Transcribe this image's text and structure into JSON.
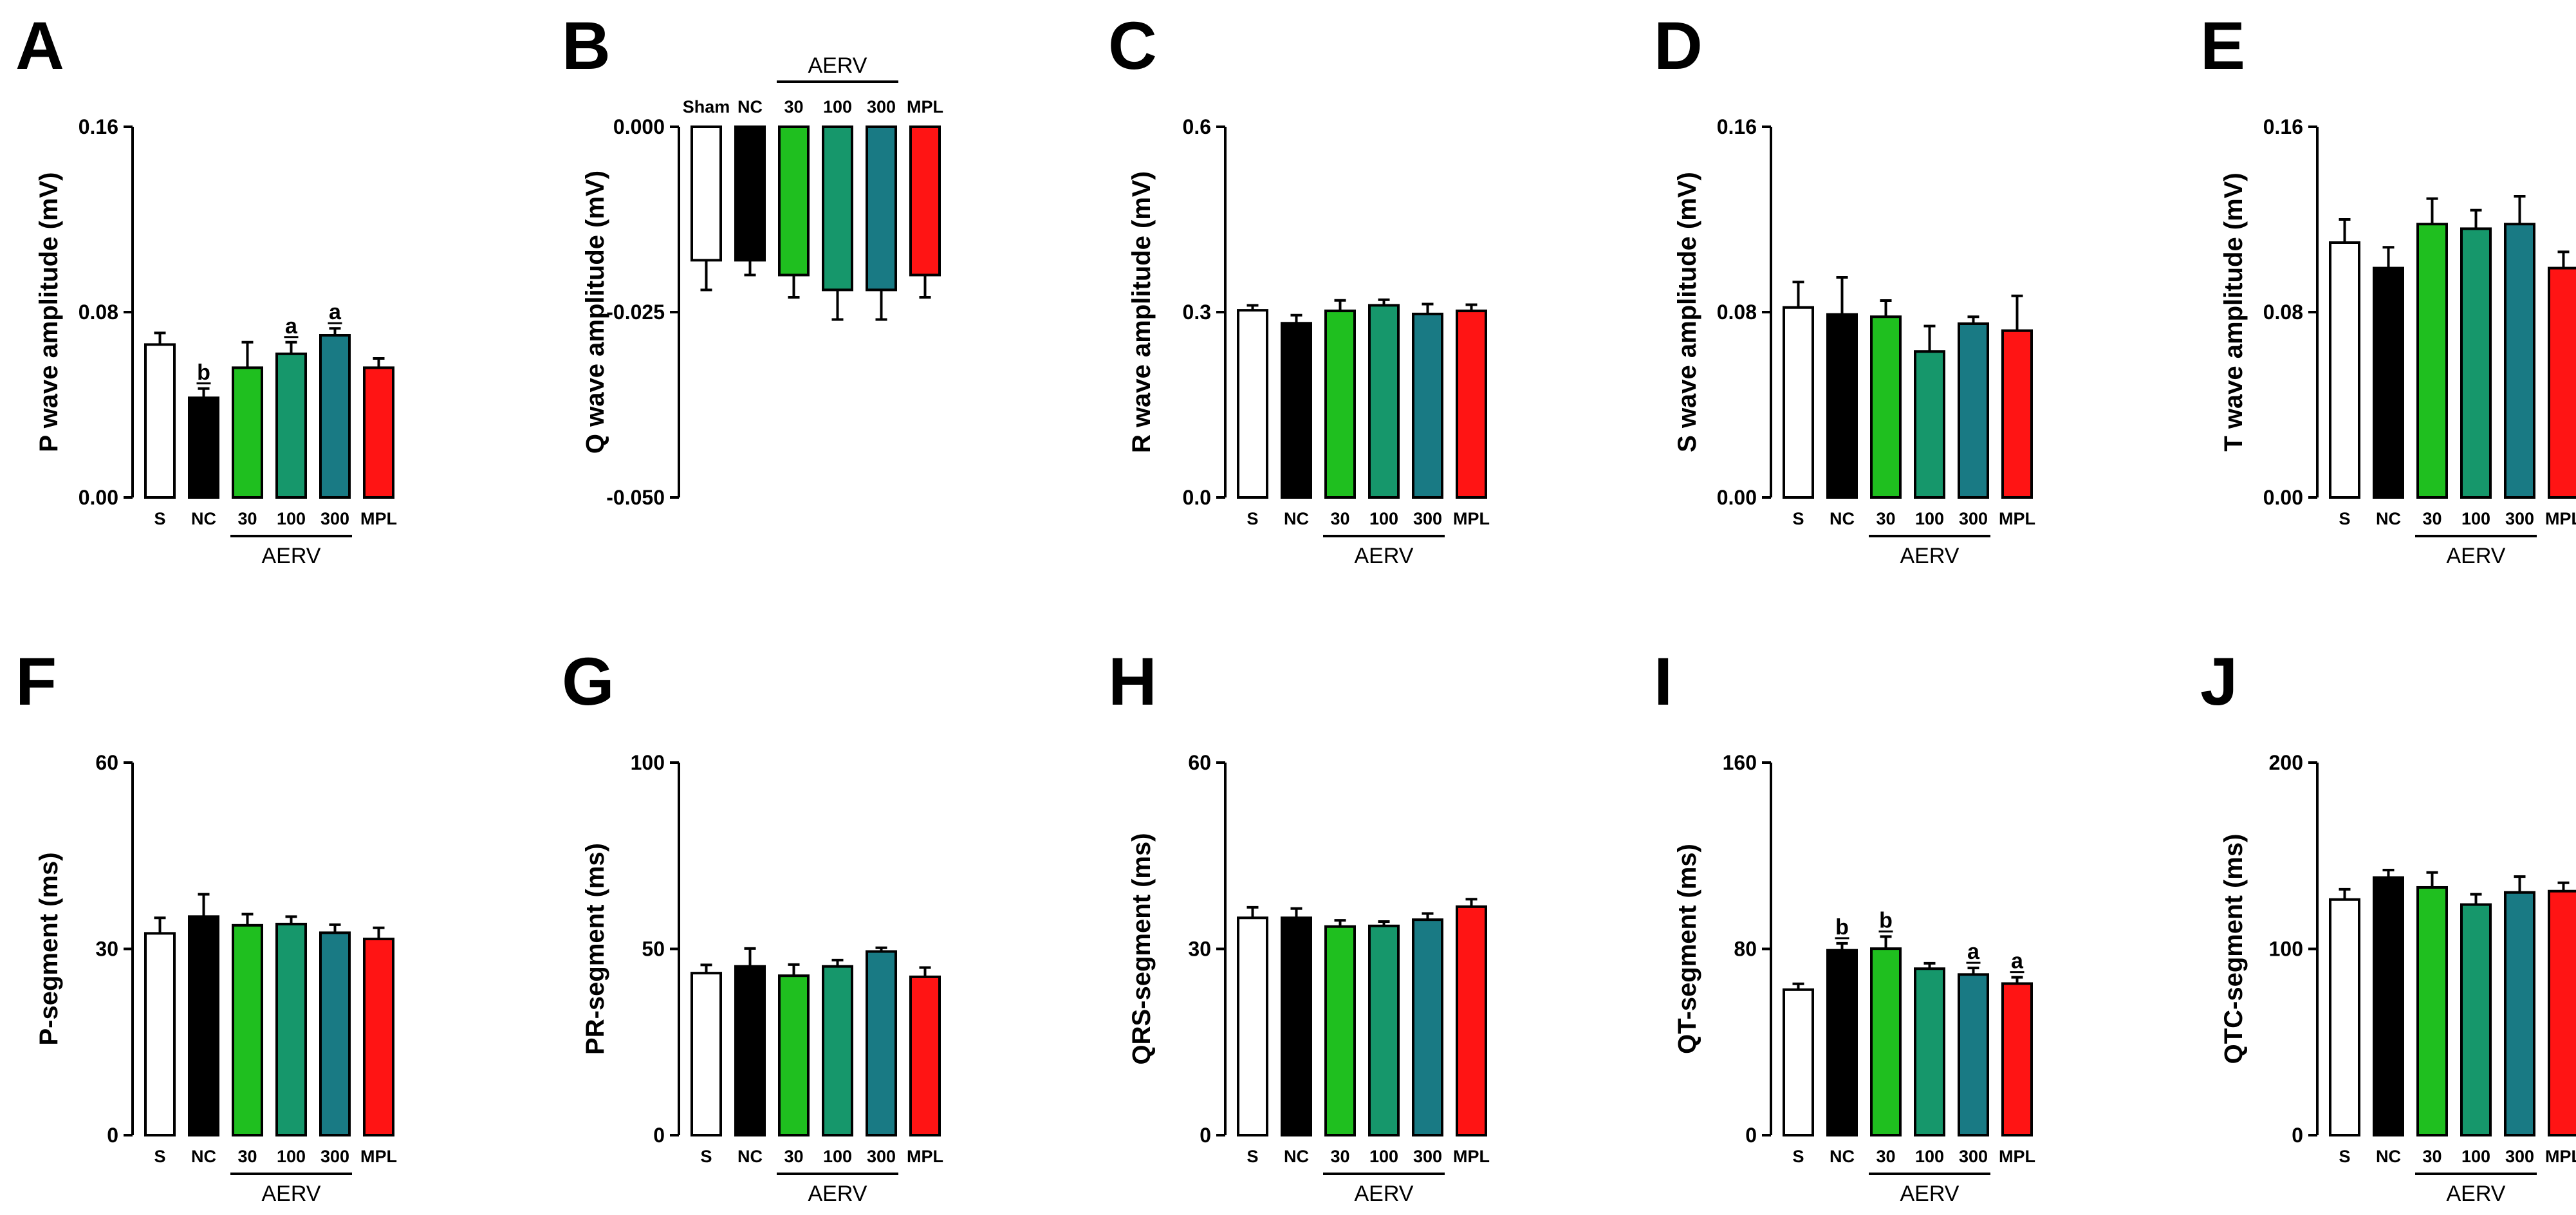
{
  "chart_data": [
    {
      "panel": "A",
      "type": "bar",
      "ylabel": "P wave amplitude (mV)",
      "ylim": [
        0,
        0.16
      ],
      "yticks": [
        "0.00",
        "0.08",
        "0.16"
      ],
      "categories": [
        "S",
        "NC",
        "30",
        "100",
        "300",
        "MPL"
      ],
      "values": [
        0.066,
        0.043,
        0.056,
        0.062,
        0.07,
        0.056
      ],
      "errors": [
        0.005,
        0.004,
        0.011,
        0.005,
        0.003,
        0.004
      ],
      "sig": [
        "",
        "b",
        "",
        "a",
        "a",
        ""
      ],
      "group_label": "AERV",
      "group_span": [
        2,
        4
      ],
      "inverted": false
    },
    {
      "panel": "B",
      "type": "bar",
      "ylabel": "Q wave amplitude (mV)",
      "ylim": [
        0,
        -0.05
      ],
      "yticks": [
        "0.000",
        "-0.025",
        "-0.050"
      ],
      "categories": [
        "Sham",
        "NC",
        "30",
        "100",
        "300",
        "MPL"
      ],
      "values": [
        -0.018,
        -0.018,
        -0.02,
        -0.022,
        -0.022,
        -0.02
      ],
      "errors": [
        0.004,
        0.002,
        0.003,
        0.004,
        0.004,
        0.003
      ],
      "sig": [
        "",
        "",
        "",
        "",
        "",
        ""
      ],
      "group_label": "AERV",
      "group_span": [
        2,
        4
      ],
      "inverted": true
    },
    {
      "panel": "C",
      "type": "bar",
      "ylabel": "R wave amplitude (mV)",
      "ylim": [
        0,
        0.6
      ],
      "yticks": [
        "0.0",
        "0.3",
        "0.6"
      ],
      "categories": [
        "S",
        "NC",
        "30",
        "100",
        "300",
        "MPL"
      ],
      "values": [
        0.303,
        0.282,
        0.302,
        0.311,
        0.297,
        0.302
      ],
      "errors": [
        0.008,
        0.013,
        0.017,
        0.009,
        0.016,
        0.01
      ],
      "sig": [
        "",
        "",
        "",
        "",
        "",
        ""
      ],
      "group_label": "AERV",
      "group_span": [
        2,
        4
      ],
      "inverted": false
    },
    {
      "panel": "D",
      "type": "bar",
      "ylabel": "S wave amplitude (mV)",
      "ylim": [
        0,
        0.16
      ],
      "yticks": [
        "0.00",
        "0.08",
        "0.16"
      ],
      "categories": [
        "S",
        "NC",
        "30",
        "100",
        "300",
        "MPL"
      ],
      "values": [
        0.082,
        0.079,
        0.078,
        0.063,
        0.075,
        0.072
      ],
      "errors": [
        0.011,
        0.016,
        0.007,
        0.011,
        0.003,
        0.015
      ],
      "sig": [
        "",
        "",
        "",
        "",
        "",
        ""
      ],
      "group_label": "AERV",
      "group_span": [
        2,
        4
      ],
      "inverted": false
    },
    {
      "panel": "E",
      "type": "bar",
      "ylabel": "T wave amplitude (mV)",
      "ylim": [
        0,
        0.16
      ],
      "yticks": [
        "0.00",
        "0.08",
        "0.16"
      ],
      "categories": [
        "S",
        "NC",
        "30",
        "100",
        "300",
        "MPL"
      ],
      "values": [
        0.11,
        0.099,
        0.118,
        0.116,
        0.118,
        0.099
      ],
      "errors": [
        0.01,
        0.009,
        0.011,
        0.008,
        0.012,
        0.007
      ],
      "sig": [
        "",
        "",
        "",
        "",
        "",
        ""
      ],
      "group_label": "AERV",
      "group_span": [
        2,
        4
      ],
      "inverted": false
    },
    {
      "panel": "F",
      "type": "bar",
      "ylabel": "P-segment (ms)",
      "ylim": [
        0,
        60
      ],
      "yticks": [
        "0",
        "30",
        "60"
      ],
      "categories": [
        "S",
        "NC",
        "30",
        "100",
        "300",
        "MPL"
      ],
      "values": [
        32.5,
        35.2,
        33.8,
        34.0,
        32.6,
        31.6
      ],
      "errors": [
        2.5,
        3.6,
        1.8,
        1.2,
        1.3,
        1.8
      ],
      "sig": [
        "",
        "",
        "",
        "",
        "",
        ""
      ],
      "group_label": "AERV",
      "group_span": [
        2,
        4
      ],
      "inverted": false
    },
    {
      "panel": "G",
      "type": "bar",
      "ylabel": "PR-segment (ms)",
      "ylim": [
        0,
        100
      ],
      "yticks": [
        "0",
        "50",
        "100"
      ],
      "categories": [
        "S",
        "NC",
        "30",
        "100",
        "300",
        "MPL"
      ],
      "values": [
        43.5,
        45.3,
        42.8,
        45.3,
        49.3,
        42.5
      ],
      "errors": [
        2.2,
        4.8,
        3.0,
        1.7,
        1.0,
        2.5
      ],
      "sig": [
        "",
        "",
        "",
        "",
        "",
        ""
      ],
      "group_label": "AERV",
      "group_span": [
        2,
        4
      ],
      "inverted": false
    },
    {
      "panel": "H",
      "type": "bar",
      "ylabel": "QRS-segment (ms)",
      "ylim": [
        0,
        60
      ],
      "yticks": [
        "0",
        "30",
        "60"
      ],
      "categories": [
        "S",
        "NC",
        "30",
        "100",
        "300",
        "MPL"
      ],
      "values": [
        35.0,
        35.0,
        33.6,
        33.7,
        34.7,
        36.8
      ],
      "errors": [
        1.7,
        1.5,
        1.0,
        0.7,
        1.0,
        1.2
      ],
      "sig": [
        "",
        "",
        "",
        "",
        "",
        ""
      ],
      "group_label": "AERV",
      "group_span": [
        2,
        4
      ],
      "inverted": false
    },
    {
      "panel": "I",
      "type": "bar",
      "ylabel": "QT-segment (ms)",
      "ylim": [
        0,
        160
      ],
      "yticks": [
        "0",
        "80",
        "160"
      ],
      "categories": [
        "S",
        "NC",
        "30",
        "100",
        "300",
        "MPL"
      ],
      "values": [
        62.5,
        79.4,
        80.1,
        71.5,
        69.0,
        65.1
      ],
      "errors": [
        2.5,
        3.0,
        5.2,
        2.3,
        2.8,
        2.7
      ],
      "sig": [
        "",
        "b",
        "b",
        "",
        "a",
        "a"
      ],
      "group_label": "AERV",
      "group_span": [
        2,
        4
      ],
      "inverted": false
    },
    {
      "panel": "J",
      "type": "bar",
      "ylabel": "QTC-segment (ms)",
      "ylim": [
        0,
        200
      ],
      "yticks": [
        "0",
        "100",
        "200"
      ],
      "categories": [
        "S",
        "NC",
        "30",
        "100",
        "300",
        "MPL"
      ],
      "values": [
        126.5,
        138.3,
        133.0,
        123.8,
        130.3,
        131.0
      ],
      "errors": [
        5.5,
        4.0,
        8.0,
        5.5,
        8.5,
        4.5
      ],
      "sig": [
        "",
        "",
        "",
        "",
        "",
        ""
      ],
      "group_label": "AERV",
      "group_span": [
        2,
        4
      ],
      "inverted": false
    }
  ],
  "colors": {
    "bars": [
      "#ffffff",
      "#000000",
      "#1fbf1f",
      "#16976b",
      "#197a84",
      "#ff1414"
    ],
    "stroke": "#000000"
  }
}
